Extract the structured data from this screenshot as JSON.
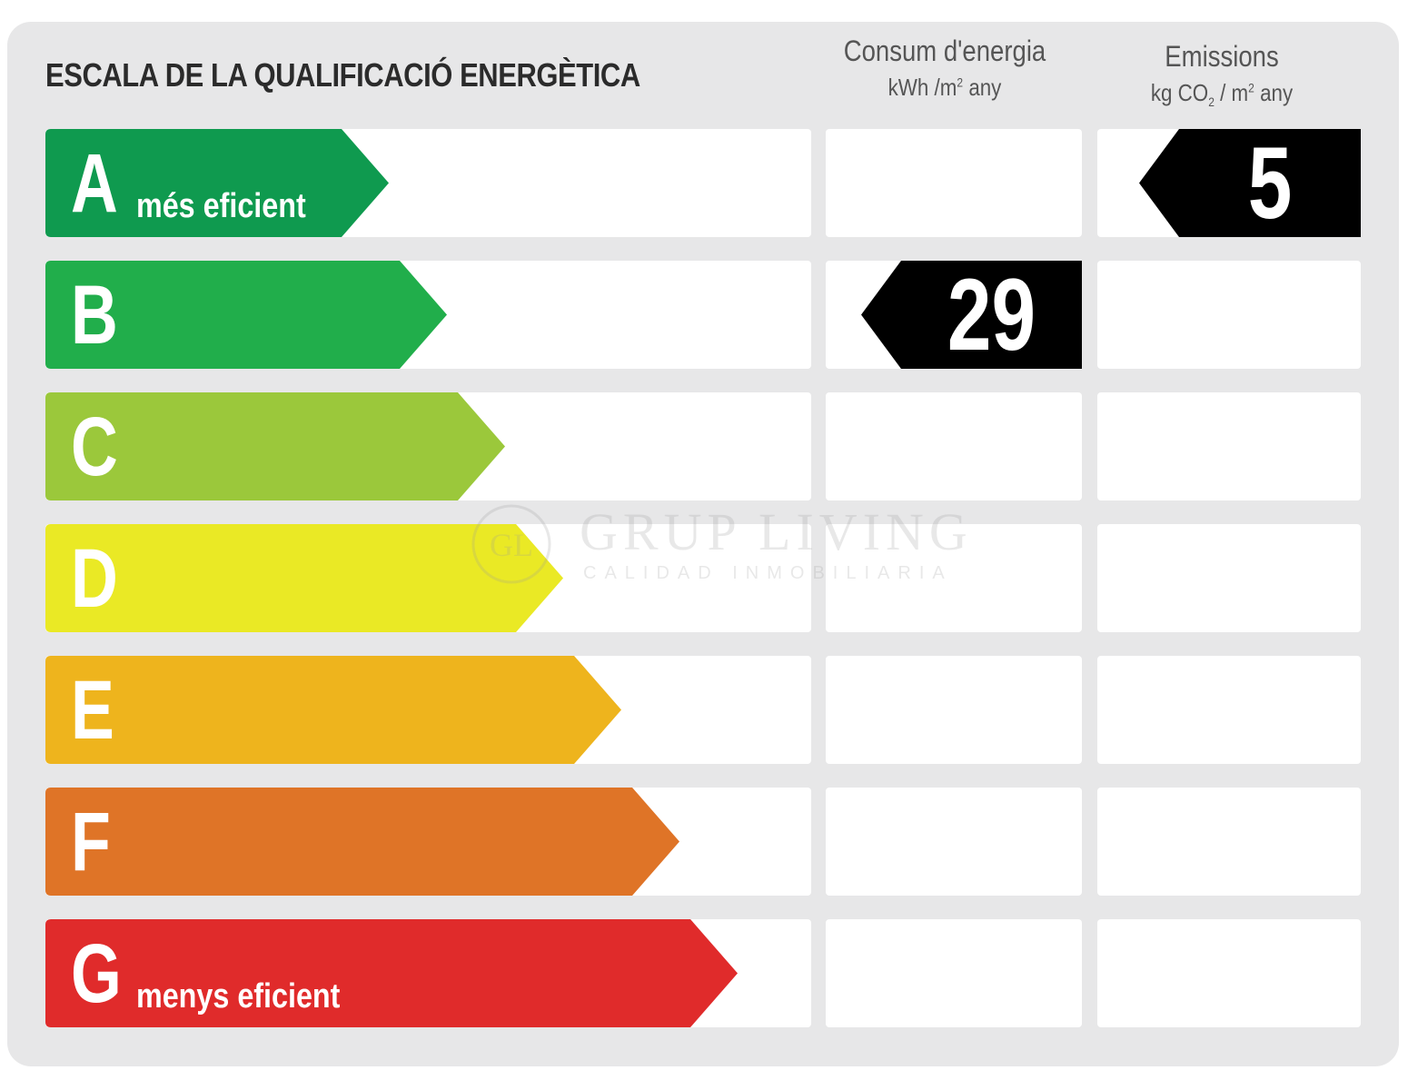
{
  "title": "ESCALA DE LA QUALIFICACIÓ ENERGÈTICA",
  "energy_column": {
    "title": "Consum d'energia",
    "unit_prefix": "kWh /m",
    "unit_exp": "2",
    "unit_suffix": " any"
  },
  "emissions_column": {
    "title": "Emissions",
    "unit_prefix": "kg CO",
    "unit_sub": "2",
    "unit_mid": " / m",
    "unit_exp": "2",
    "unit_suffix": " any"
  },
  "ratings": [
    {
      "letter": "A",
      "label": "més eficient",
      "color": "#0f9a4f"
    },
    {
      "letter": "B",
      "label": "",
      "color": "#21ae4b"
    },
    {
      "letter": "C",
      "label": "",
      "color": "#9bc83b"
    },
    {
      "letter": "D",
      "label": "",
      "color": "#eae925"
    },
    {
      "letter": "E",
      "label": "",
      "color": "#eeb41d"
    },
    {
      "letter": "F",
      "label": "",
      "color": "#df7427"
    },
    {
      "letter": "G",
      "label": "menys eficient",
      "color": "#e02b2b"
    }
  ],
  "energy_indicator": {
    "rating": "B",
    "value": "29"
  },
  "emissions_indicator": {
    "rating": "A",
    "value": "5"
  },
  "watermark": {
    "logo_text": "GL",
    "name": "GRUP LIVING",
    "tagline": "CALIDAD INMOBILIARIA"
  }
}
